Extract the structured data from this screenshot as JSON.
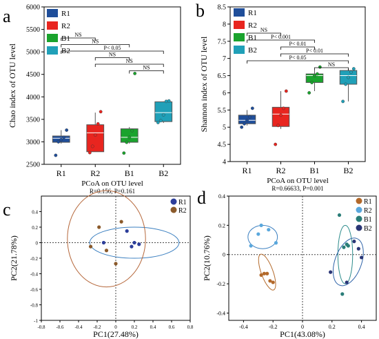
{
  "figure": {
    "panel_labels": [
      "a",
      "b",
      "c",
      "d"
    ]
  },
  "chart_data": [
    {
      "panel": "a",
      "type": "box",
      "ylabel": "Chao index of OTU level",
      "categories": [
        "R1",
        "R2",
        "B1",
        "B2"
      ],
      "colors": [
        "#1f4e9a",
        "#e8251f",
        "#1aa32d",
        "#20a0b8"
      ],
      "ylim": [
        2500,
        6000
      ],
      "yticks": [
        2500,
        3000,
        3500,
        4000,
        4500,
        5000,
        5500,
        6000
      ],
      "boxes": [
        {
          "min": 2960,
          "q1": 2990,
          "median": 3080,
          "q3": 3130,
          "max": 3260,
          "points": [
            2700,
            3000,
            3050,
            3100,
            3260
          ]
        },
        {
          "min": 2780,
          "q1": 2780,
          "median": 3200,
          "q3": 3380,
          "max": 3650,
          "points": [
            2760,
            2900,
            3150,
            3400,
            3670
          ]
        },
        {
          "min": 2960,
          "q1": 2990,
          "median": 3100,
          "q3": 3290,
          "max": 3330,
          "points": [
            2750,
            2990,
            3100,
            3250,
            4520
          ]
        },
        {
          "min": 3420,
          "q1": 3450,
          "median": 3650,
          "q3": 3890,
          "max": 3900,
          "points": [
            3430,
            3470,
            3600,
            3900,
            3910
          ]
        }
      ],
      "legend": [
        "R1",
        "R2",
        "B1",
        "B2"
      ],
      "significance": [
        {
          "pair": [
            0,
            1
          ],
          "label": "NS"
        },
        {
          "pair": [
            0,
            2
          ],
          "label": "NS"
        },
        {
          "pair": [
            0,
            3
          ],
          "label": "P< 0.05"
        },
        {
          "pair": [
            1,
            2
          ],
          "label": "NS"
        },
        {
          "pair": [
            1,
            3
          ],
          "label": "NS"
        },
        {
          "pair": [
            2,
            3
          ],
          "label": "NS"
        }
      ],
      "footer_title": "PCoA on OTU level",
      "footer_stat": "R=0.156, P=0.161"
    },
    {
      "panel": "b",
      "type": "box",
      "ylabel": "Shannon index of OTU level",
      "categories": [
        "R1",
        "R2",
        "B1",
        "B2"
      ],
      "colors": [
        "#1f4e9a",
        "#e8251f",
        "#1aa32d",
        "#20a0b8"
      ],
      "ylim": [
        4,
        8.5
      ],
      "yticks": [
        4,
        4.5,
        5,
        5.5,
        6,
        6.5,
        7,
        7.5,
        8,
        8.5
      ],
      "boxes": [
        {
          "min": 5.05,
          "q1": 5.1,
          "median": 5.2,
          "q3": 5.35,
          "max": 5.5,
          "points": [
            5.0,
            5.1,
            5.2,
            5.3,
            5.55
          ]
        },
        {
          "min": 4.95,
          "q1": 5.02,
          "median": 5.38,
          "q3": 5.58,
          "max": 6.05,
          "points": [
            4.5,
            5.05,
            5.35,
            5.55,
            6.05
          ]
        },
        {
          "min": 6.05,
          "q1": 6.3,
          "median": 6.5,
          "q3": 6.55,
          "max": 6.65,
          "points": [
            6.0,
            6.3,
            6.5,
            6.55,
            6.75
          ]
        },
        {
          "min": 5.75,
          "q1": 6.25,
          "median": 6.5,
          "q3": 6.65,
          "max": 6.7,
          "points": [
            5.75,
            6.25,
            6.45,
            6.6,
            6.7
          ]
        }
      ],
      "legend": [
        "R1",
        "R2",
        "B1",
        "B2"
      ],
      "significance": [
        {
          "pair": [
            0,
            1
          ],
          "label": "NS"
        },
        {
          "pair": [
            0,
            2
          ],
          "label": "P< 0.001"
        },
        {
          "pair": [
            1,
            2
          ],
          "label": "P< 0.01"
        },
        {
          "pair": [
            1,
            3
          ],
          "label": "P< 0.01"
        },
        {
          "pair": [
            0,
            3
          ],
          "label": "P< 0.05"
        },
        {
          "pair": [
            2,
            3
          ],
          "label": "NS"
        }
      ],
      "footer_title": "PCoA on OTU level",
      "footer_stat": "R=0.66633, P=0.001"
    },
    {
      "panel": "c",
      "type": "scatter",
      "xlabel": "PC1(27.48%)",
      "ylabel": "PC2(21.78%)",
      "xlim": [
        -0.8,
        0.8
      ],
      "ylim": [
        -1.0,
        0.6
      ],
      "xticks": [
        -0.8,
        -0.6,
        -0.4,
        -0.2,
        0,
        0.2,
        0.4,
        0.6,
        0.8
      ],
      "yticks": [
        -1,
        -0.8,
        -0.6,
        -0.4,
        -0.2,
        0,
        0.2,
        0.4
      ],
      "legend": [
        "R1",
        "R2"
      ],
      "series": [
        {
          "name": "R1",
          "color": "#2d3e9a",
          "points": [
            [
              -0.13,
              0.0
            ],
            [
              0.12,
              0.15
            ],
            [
              0.17,
              -0.05
            ],
            [
              0.2,
              0.0
            ],
            [
              0.25,
              -0.02
            ]
          ]
        },
        {
          "name": "R2",
          "color": "#8b5a2b",
          "points": [
            [
              -0.27,
              -0.05
            ],
            [
              -0.18,
              0.2
            ],
            [
              -0.1,
              -0.1
            ],
            [
              0.06,
              0.27
            ],
            [
              0.0,
              -0.27
            ]
          ]
        }
      ],
      "ellipses": [
        {
          "series": "R1",
          "color": "#3a7fc0",
          "cx": 0.2,
          "cy": 0.0,
          "rx": 0.48,
          "ry": 0.2,
          "angle": 0
        },
        {
          "series": "R2",
          "color": "#b5673a",
          "cx": -0.1,
          "cy": 0.05,
          "rx": 0.42,
          "ry": 0.62,
          "angle": 0
        }
      ]
    },
    {
      "panel": "d",
      "type": "scatter",
      "xlabel": "PC1(43.08%)",
      "ylabel": "PC2(10.76%)",
      "xlim": [
        -0.5,
        0.5
      ],
      "ylim": [
        -0.45,
        0.4
      ],
      "xticks": [
        -0.4,
        -0.2,
        0,
        0.2,
        0.4
      ],
      "yticks": [
        -0.4,
        -0.2,
        0,
        0.2,
        0.4
      ],
      "legend": [
        "R1",
        "R2",
        "B1",
        "B2"
      ],
      "series": [
        {
          "name": "R1",
          "color": "#b3692a",
          "points": [
            [
              -0.28,
              -0.14
            ],
            [
              -0.26,
              -0.13
            ],
            [
              -0.24,
              -0.13
            ],
            [
              -0.22,
              -0.18
            ],
            [
              -0.2,
              -0.19
            ]
          ]
        },
        {
          "name": "R2",
          "color": "#5aa8dd",
          "points": [
            [
              -0.35,
              0.06
            ],
            [
              -0.3,
              0.14
            ],
            [
              -0.28,
              0.2
            ],
            [
              -0.23,
              0.17
            ],
            [
              -0.18,
              0.08
            ]
          ]
        },
        {
          "name": "B1",
          "color": "#2a7d78",
          "points": [
            [
              0.25,
              0.27
            ],
            [
              0.28,
              0.05
            ],
            [
              0.3,
              0.07
            ],
            [
              0.31,
              0.06
            ],
            [
              0.27,
              -0.27
            ]
          ]
        },
        {
          "name": "B2",
          "color": "#2a3575",
          "points": [
            [
              0.19,
              -0.12
            ],
            [
              0.3,
              -0.19
            ],
            [
              0.35,
              0.09
            ],
            [
              0.38,
              0.04
            ],
            [
              0.4,
              -0.02
            ]
          ]
        }
      ],
      "ellipses": [
        {
          "series": "R1",
          "color": "#b3692a",
          "cx": -0.24,
          "cy": -0.12,
          "rx": 0.04,
          "ry": 0.13,
          "angle": -20
        },
        {
          "series": "R2",
          "color": "#3a7fc0",
          "cx": -0.27,
          "cy": 0.12,
          "rx": 0.1,
          "ry": 0.08,
          "angle": 0
        },
        {
          "series": "B1",
          "color": "#2a8a8a",
          "cx": 0.29,
          "cy": 0.0,
          "rx": 0.05,
          "ry": 0.2,
          "angle": 0
        },
        {
          "series": "B2",
          "color": "#2d62a8",
          "cx": 0.31,
          "cy": -0.05,
          "rx": 0.09,
          "ry": 0.17,
          "angle": 20
        }
      ]
    }
  ]
}
